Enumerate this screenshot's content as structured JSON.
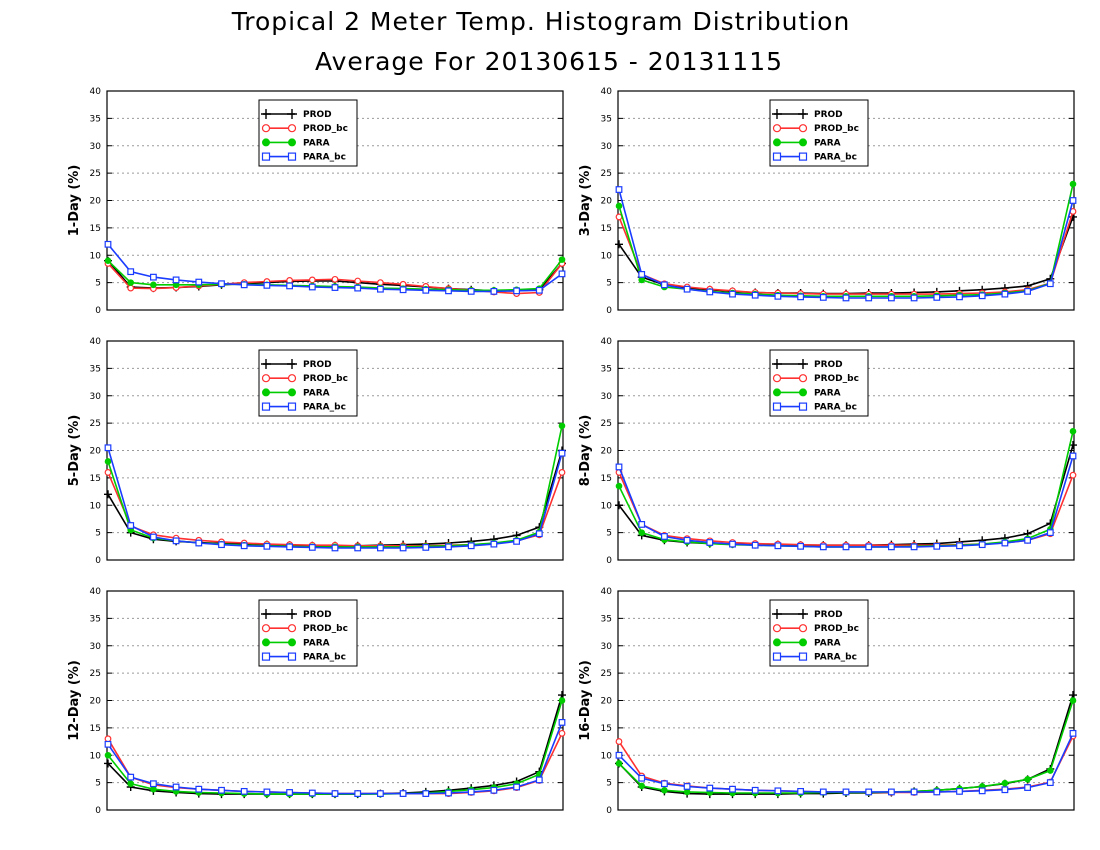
{
  "title": "Tropical 2 Meter Temp. Histogram Distribution",
  "subtitle": "Average For 20130615 - 20131115",
  "colors": {
    "PROD": "#000000",
    "PROD_bc": "#ff3030",
    "PARA": "#00cc00",
    "PARA_bc": "#1a3cff"
  },
  "legend": [
    "PROD",
    "PROD_bc",
    "PARA",
    "PARA_bc"
  ],
  "chart_data": [
    {
      "type": "line",
      "ylabel": "1-Day (%)",
      "ylim": [
        0,
        40
      ],
      "yticks": [
        0,
        5,
        10,
        15,
        20,
        25,
        30,
        35,
        40
      ],
      "grid": true,
      "legend_position": "top-center",
      "series": [
        {
          "name": "PROD",
          "values": [
            9,
            4.2,
            4.0,
            4.1,
            4.3,
            4.6,
            4.8,
            5.0,
            5.2,
            5.3,
            5.3,
            5.0,
            4.7,
            4.5,
            4.2,
            3.9,
            3.7,
            3.5,
            3.5,
            3.7,
            8.5
          ]
        },
        {
          "name": "PROD_bc",
          "values": [
            8.5,
            4.0,
            3.9,
            4.1,
            4.4,
            4.7,
            5.0,
            5.2,
            5.4,
            5.5,
            5.6,
            5.3,
            5.0,
            4.7,
            4.3,
            3.9,
            3.6,
            3.3,
            3.0,
            3.2,
            8.5
          ]
        },
        {
          "name": "PARA",
          "values": [
            9,
            5.0,
            4.6,
            4.6,
            4.6,
            4.7,
            4.7,
            4.6,
            4.5,
            4.4,
            4.3,
            4.2,
            4.0,
            3.9,
            3.8,
            3.7,
            3.6,
            3.6,
            3.7,
            3.9,
            9.2
          ]
        },
        {
          "name": "PARA_bc",
          "values": [
            12,
            7.0,
            6.0,
            5.5,
            5.1,
            4.8,
            4.6,
            4.5,
            4.4,
            4.2,
            4.1,
            4.0,
            3.8,
            3.7,
            3.6,
            3.5,
            3.4,
            3.4,
            3.5,
            3.6,
            6.6
          ]
        }
      ]
    },
    {
      "type": "line",
      "ylabel": "3-Day (%)",
      "ylim": [
        0,
        40
      ],
      "yticks": [
        0,
        5,
        10,
        15,
        20,
        25,
        30,
        35,
        40
      ],
      "grid": true,
      "legend_position": "top-center",
      "series": [
        {
          "name": "PROD",
          "values": [
            12,
            6.0,
            4.6,
            4.0,
            3.7,
            3.4,
            3.2,
            3.1,
            3.1,
            3.0,
            3.0,
            3.1,
            3.1,
            3.2,
            3.3,
            3.5,
            3.7,
            4.0,
            4.4,
            5.7,
            17
          ]
        },
        {
          "name": "PROD_bc",
          "values": [
            17,
            6.5,
            4.8,
            4.2,
            3.8,
            3.5,
            3.2,
            3.1,
            3.0,
            2.9,
            2.9,
            2.9,
            2.9,
            2.9,
            2.9,
            3.0,
            3.1,
            3.3,
            3.7,
            4.9,
            18
          ]
        },
        {
          "name": "PARA",
          "values": [
            19,
            5.5,
            4.2,
            3.8,
            3.4,
            3.1,
            2.9,
            2.7,
            2.6,
            2.5,
            2.5,
            2.5,
            2.5,
            2.5,
            2.6,
            2.7,
            2.8,
            3.1,
            3.5,
            4.9,
            23
          ]
        },
        {
          "name": "PARA_bc",
          "values": [
            22,
            6.5,
            4.6,
            3.8,
            3.3,
            2.9,
            2.7,
            2.5,
            2.4,
            2.3,
            2.2,
            2.2,
            2.2,
            2.2,
            2.3,
            2.4,
            2.6,
            2.9,
            3.4,
            4.8,
            20
          ]
        }
      ]
    },
    {
      "type": "line",
      "ylabel": "5-Day (%)",
      "ylim": [
        0,
        40
      ],
      "yticks": [
        0,
        5,
        10,
        15,
        20,
        25,
        30,
        35,
        40
      ],
      "grid": true,
      "legend_position": "top-center",
      "series": [
        {
          "name": "PROD",
          "values": [
            12,
            5.0,
            3.8,
            3.4,
            3.2,
            3.0,
            2.9,
            2.8,
            2.7,
            2.6,
            2.6,
            2.6,
            2.7,
            2.8,
            2.9,
            3.1,
            3.4,
            3.8,
            4.5,
            6.0,
            20
          ]
        },
        {
          "name": "PROD_bc",
          "values": [
            16,
            6.2,
            4.6,
            4.0,
            3.6,
            3.3,
            3.1,
            2.9,
            2.8,
            2.7,
            2.7,
            2.6,
            2.6,
            2.6,
            2.6,
            2.7,
            2.8,
            3.0,
            3.5,
            4.6,
            16
          ]
        },
        {
          "name": "PARA",
          "values": [
            18,
            5.5,
            4.0,
            3.5,
            3.1,
            2.9,
            2.7,
            2.6,
            2.5,
            2.4,
            2.4,
            2.4,
            2.4,
            2.4,
            2.5,
            2.6,
            2.8,
            3.1,
            3.6,
            5.1,
            24.5
          ]
        },
        {
          "name": "PARA_bc",
          "values": [
            20.5,
            6.3,
            4.2,
            3.5,
            3.1,
            2.8,
            2.6,
            2.5,
            2.4,
            2.3,
            2.2,
            2.2,
            2.2,
            2.2,
            2.3,
            2.4,
            2.6,
            2.9,
            3.4,
            4.8,
            19.5
          ]
        }
      ]
    },
    {
      "type": "line",
      "ylabel": "8-Day (%)",
      "ylim": [
        0,
        40
      ],
      "yticks": [
        0,
        5,
        10,
        15,
        20,
        25,
        30,
        35,
        40
      ],
      "grid": true,
      "legend_position": "top-center",
      "series": [
        {
          "name": "PROD",
          "values": [
            10,
            4.5,
            3.6,
            3.2,
            3.0,
            2.9,
            2.8,
            2.8,
            2.7,
            2.7,
            2.7,
            2.7,
            2.8,
            2.9,
            3.0,
            3.3,
            3.6,
            4.0,
            4.8,
            6.7,
            21
          ]
        },
        {
          "name": "PROD_bc",
          "values": [
            16,
            6.5,
            4.5,
            3.9,
            3.5,
            3.2,
            3.0,
            2.9,
            2.8,
            2.7,
            2.7,
            2.7,
            2.7,
            2.7,
            2.7,
            2.8,
            2.9,
            3.1,
            3.6,
            4.8,
            15.5
          ]
        },
        {
          "name": "PARA",
          "values": [
            13.5,
            5.0,
            3.7,
            3.3,
            3.0,
            2.8,
            2.7,
            2.6,
            2.5,
            2.4,
            2.4,
            2.4,
            2.4,
            2.5,
            2.6,
            2.7,
            2.9,
            3.3,
            3.9,
            5.6,
            23.5
          ]
        },
        {
          "name": "PARA_bc",
          "values": [
            17,
            6.5,
            4.3,
            3.6,
            3.2,
            2.9,
            2.7,
            2.6,
            2.5,
            2.4,
            2.4,
            2.4,
            2.4,
            2.4,
            2.5,
            2.6,
            2.8,
            3.1,
            3.6,
            5.0,
            19
          ]
        }
      ]
    },
    {
      "type": "line",
      "ylabel": "12-Day (%)",
      "ylim": [
        0,
        40
      ],
      "yticks": [
        0,
        5,
        10,
        15,
        20,
        25,
        30,
        35,
        40
      ],
      "grid": true,
      "legend_position": "top-center",
      "series": [
        {
          "name": "PROD",
          "values": [
            8.5,
            4.2,
            3.5,
            3.2,
            3.0,
            2.9,
            2.9,
            2.9,
            2.9,
            2.9,
            2.9,
            2.9,
            3.0,
            3.1,
            3.3,
            3.6,
            4.0,
            4.5,
            5.2,
            7.0,
            21
          ]
        },
        {
          "name": "PROD_bc",
          "values": [
            13,
            6.0,
            4.6,
            4.1,
            3.8,
            3.6,
            3.4,
            3.3,
            3.2,
            3.1,
            3.0,
            3.0,
            3.0,
            3.0,
            3.0,
            3.0,
            3.2,
            3.5,
            4.1,
            5.4,
            14
          ]
        },
        {
          "name": "PARA",
          "values": [
            10,
            4.8,
            3.8,
            3.4,
            3.2,
            3.1,
            3.0,
            2.9,
            2.9,
            2.9,
            2.9,
            2.9,
            2.9,
            3.0,
            3.1,
            3.4,
            3.7,
            4.1,
            4.8,
            6.5,
            20
          ]
        },
        {
          "name": "PARA_bc",
          "values": [
            12,
            6.0,
            4.8,
            4.2,
            3.8,
            3.6,
            3.4,
            3.3,
            3.2,
            3.1,
            3.0,
            3.0,
            3.0,
            3.0,
            3.0,
            3.1,
            3.3,
            3.6,
            4.2,
            5.5,
            16
          ]
        }
      ]
    },
    {
      "type": "line",
      "ylabel": "16-Day (%)",
      "ylim": [
        0,
        40
      ],
      "yticks": [
        0,
        5,
        10,
        15,
        20,
        25,
        30,
        35,
        40
      ],
      "grid": true,
      "legend_position": "top-center",
      "series": [
        {
          "name": "PROD",
          "values": [
            8.5,
            4.2,
            3.4,
            3.0,
            2.9,
            2.9,
            2.9,
            2.9,
            3.0,
            3.0,
            3.1,
            3.1,
            3.2,
            3.4,
            3.6,
            3.9,
            4.3,
            4.8,
            5.6,
            7.5,
            21
          ]
        },
        {
          "name": "PROD_bc",
          "values": [
            12.5,
            6.2,
            4.9,
            4.4,
            4.0,
            3.8,
            3.6,
            3.5,
            3.4,
            3.3,
            3.3,
            3.2,
            3.2,
            3.2,
            3.3,
            3.4,
            3.6,
            3.8,
            4.2,
            5.1,
            13.5
          ]
        },
        {
          "name": "PARA",
          "values": [
            8.5,
            4.4,
            3.6,
            3.3,
            3.2,
            3.1,
            3.1,
            3.1,
            3.1,
            3.2,
            3.2,
            3.2,
            3.3,
            3.4,
            3.6,
            3.9,
            4.3,
            4.9,
            5.6,
            7.2,
            20
          ]
        },
        {
          "name": "PARA_bc",
          "values": [
            10,
            5.8,
            4.8,
            4.3,
            4.0,
            3.8,
            3.6,
            3.5,
            3.4,
            3.3,
            3.3,
            3.3,
            3.3,
            3.3,
            3.3,
            3.4,
            3.5,
            3.7,
            4.1,
            5.0,
            14
          ]
        }
      ]
    }
  ]
}
